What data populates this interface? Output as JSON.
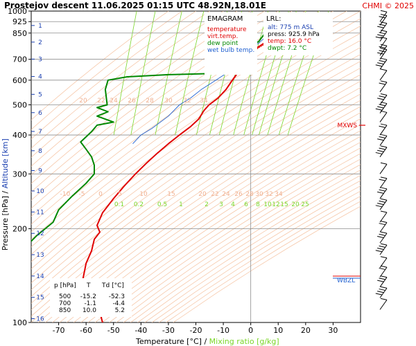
{
  "header": {
    "title": "Prostejov   descent   11.06.2025 01:15 UTC  48.92N,18.01E",
    "copyright": "CHMI © 2025"
  },
  "legend": {
    "heading": "EMAGRAM",
    "items": [
      {
        "label": "temperature",
        "color": "#e00000"
      },
      {
        "label": "virt.temp.",
        "color": "#e00000"
      },
      {
        "label": "dew point",
        "color": "#008800"
      },
      {
        "label": "wet bulb temp.",
        "color": "#2060d0"
      }
    ]
  },
  "lrl": {
    "heading": "LRL:",
    "alt": "alt: 775 m ASL",
    "press": "press: 925.9 hPa",
    "temp": "temp: 16.0 °C",
    "dwpt": "dwpt: 7.2 °C"
  },
  "table": {
    "headers": [
      "p [hPa]",
      "T",
      "Td [°C]"
    ],
    "rows": [
      [
        "500",
        "-15.2",
        "-52.3"
      ],
      [
        "700",
        "-1.1",
        "-4.4"
      ],
      [
        "850",
        "10.0",
        "5.2"
      ]
    ]
  },
  "markers": {
    "mxws": "MXWS",
    "wbzl": "WBZL"
  },
  "axes": {
    "xlabel_temp": "Temperature [°C]",
    "xlabel_sep": " / ",
    "xlabel_mix": "Mixing ratio [g/kg]",
    "ylabel_p": "Pressure [hPa]",
    "ylabel_sep": "  /  ",
    "ylabel_alt": "Altitude [km]"
  },
  "chart_data": {
    "type": "line",
    "xlabel": "Temperature [°C] / Mixing ratio [g/kg]",
    "ylabel": "Pressure [hPa] / Altitude [km]",
    "xlim": [
      -80,
      40
    ],
    "y_scale": "log",
    "ylim": [
      1000,
      100
    ],
    "x_ticks": [
      -70,
      -60,
      -50,
      -40,
      -30,
      -20,
      -10,
      0,
      10,
      20,
      30
    ],
    "y_ticks": [
      100,
      200,
      300,
      400,
      500,
      600,
      700,
      850,
      925,
      1000
    ],
    "altitude_ticks_km": [
      1,
      2,
      3,
      4,
      5,
      6,
      7,
      8,
      9,
      10,
      11,
      12,
      13,
      14,
      15,
      16
    ],
    "dry_adiabat_labels_upper": [
      "20",
      "22",
      "24",
      "26",
      "28",
      "30",
      "32",
      "34"
    ],
    "dry_adiabat_labels_lower": [
      "-10",
      "-5",
      "0",
      "5",
      "10",
      "15",
      "20",
      "22",
      "24",
      "26",
      "28",
      "30",
      "32",
      "34"
    ],
    "mixing_ratio_labels": [
      "0.1",
      "0.2",
      "0.5",
      "1",
      "2",
      "3",
      "4",
      "6",
      "8",
      "10",
      "12",
      "15",
      "20",
      "25"
    ],
    "series": [
      {
        "name": "temperature",
        "color": "#e00000",
        "points": [
          [
            16.0,
            925
          ],
          [
            14,
            900
          ],
          [
            10.0,
            850
          ],
          [
            5,
            790
          ],
          [
            0,
            740
          ],
          [
            -1.1,
            700
          ],
          [
            -3,
            660
          ],
          [
            -5,
            630
          ],
          [
            -7,
            595
          ],
          [
            -9,
            560
          ],
          [
            -12,
            525
          ],
          [
            -15.2,
            500
          ],
          [
            -17,
            480
          ],
          [
            -19,
            450
          ],
          [
            -22,
            425
          ],
          [
            -26,
            400
          ],
          [
            -30,
            375
          ],
          [
            -34,
            350
          ],
          [
            -38,
            325
          ],
          [
            -42,
            300
          ],
          [
            -46,
            275
          ],
          [
            -50,
            250
          ],
          [
            -54,
            225
          ],
          [
            -56,
            205
          ],
          [
            -55,
            195
          ],
          [
            -57,
            185
          ],
          [
            -58,
            170
          ],
          [
            -60,
            155
          ],
          [
            -61,
            140
          ],
          [
            -62,
            128
          ],
          [
            -58,
            122
          ],
          [
            -56,
            115
          ],
          [
            -55,
            108
          ],
          [
            -54,
            100
          ]
        ]
      },
      {
        "name": "virt.temp.",
        "color": "#e00000",
        "points": [
          [
            17.2,
            925
          ],
          [
            15.1,
            900
          ],
          [
            11.0,
            850
          ],
          [
            5.8,
            790
          ],
          [
            0.7,
            740
          ],
          [
            -0.6,
            700
          ],
          [
            -2.6,
            660
          ],
          [
            -4.7,
            630
          ],
          [
            -6.8,
            595
          ],
          [
            -8.9,
            560
          ],
          [
            -11.9,
            525
          ],
          [
            -15.2,
            500
          ],
          [
            -17,
            480
          ],
          [
            -19,
            450
          ],
          [
            -22,
            425
          ],
          [
            -26,
            400
          ],
          [
            -30,
            375
          ],
          [
            -34,
            350
          ],
          [
            -38,
            325
          ],
          [
            -42,
            300
          ],
          [
            -46,
            275
          ],
          [
            -50,
            250
          ],
          [
            -54,
            225
          ]
        ]
      },
      {
        "name": "dew point",
        "color": "#008800",
        "points": [
          [
            7.2,
            925
          ],
          [
            6,
            900
          ],
          [
            5.2,
            850
          ],
          [
            3,
            800
          ],
          [
            -2,
            750
          ],
          [
            -4.4,
            700
          ],
          [
            -6,
            660
          ],
          [
            -8,
            640
          ],
          [
            -14,
            630
          ],
          [
            -30,
            625
          ],
          [
            -45,
            615
          ],
          [
            -52,
            600
          ],
          [
            -53,
            560
          ],
          [
            -52.3,
            500
          ],
          [
            -56,
            490
          ],
          [
            -52,
            475
          ],
          [
            -56,
            460
          ],
          [
            -50,
            440
          ],
          [
            -56,
            430
          ],
          [
            -58,
            410
          ],
          [
            -62,
            380
          ],
          [
            -60,
            360
          ],
          [
            -58,
            340
          ],
          [
            -57,
            320
          ],
          [
            -57,
            300
          ],
          [
            -60,
            280
          ],
          [
            -65,
            255
          ],
          [
            -70,
            230
          ],
          [
            -72,
            210
          ],
          [
            -78,
            190
          ],
          [
            -82,
            175
          ]
        ]
      },
      {
        "name": "wet bulb temp.",
        "color": "#2060d0",
        "points": [
          [
            10.5,
            925
          ],
          [
            9,
            900
          ],
          [
            7.0,
            850
          ],
          [
            3,
            790
          ],
          [
            -2,
            740
          ],
          [
            -3,
            700
          ],
          [
            -6,
            660
          ],
          [
            -9,
            630
          ],
          [
            -14,
            590
          ],
          [
            -18,
            560
          ],
          [
            -22,
            525
          ],
          [
            -26,
            500
          ],
          [
            -30,
            460
          ],
          [
            -36,
            420
          ],
          [
            -40,
            400
          ],
          [
            -43,
            375
          ]
        ]
      }
    ]
  }
}
